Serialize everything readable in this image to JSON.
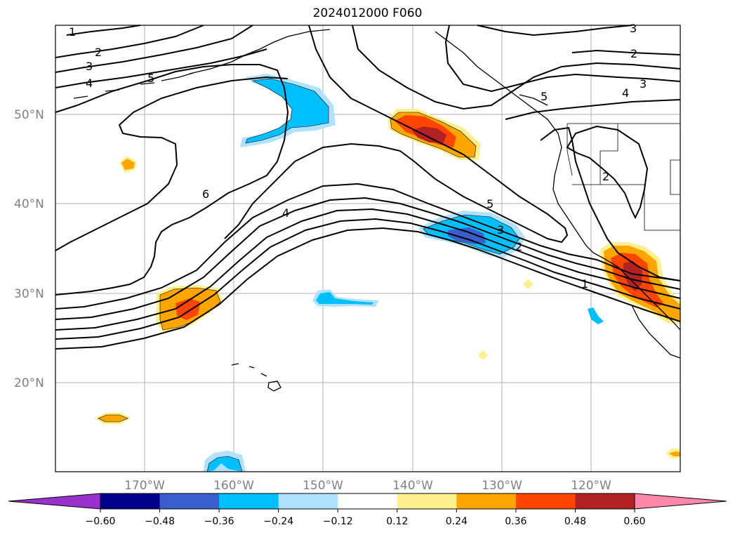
{
  "title": "2024012000 F060",
  "map": {
    "lat_labels": [
      "50°N",
      "40°N",
      "30°N",
      "20°N"
    ],
    "lon_labels": [
      "170°W",
      "160°W",
      "150°W",
      "140°W",
      "130°W",
      "120°W"
    ],
    "contour_labels": [
      "1",
      "2",
      "3",
      "4",
      "5",
      "6",
      "4",
      "5",
      "3",
      "2",
      "1",
      "5",
      "4",
      "3",
      "2",
      "3",
      "2"
    ]
  },
  "colorbar": {
    "ticks": [
      "−0.60",
      "−0.48",
      "−0.36",
      "−0.24",
      "−0.12",
      "0.12",
      "0.24",
      "0.36",
      "0.48",
      "0.60"
    ],
    "colors": [
      "#9932cc",
      "#00008b",
      "#3a5fcd",
      "#00bfff",
      "#b0e2ff",
      "#ffffff",
      "#fff08f",
      "#ffa500",
      "#ff4500",
      "#b22222",
      "#ff88aa"
    ]
  }
}
